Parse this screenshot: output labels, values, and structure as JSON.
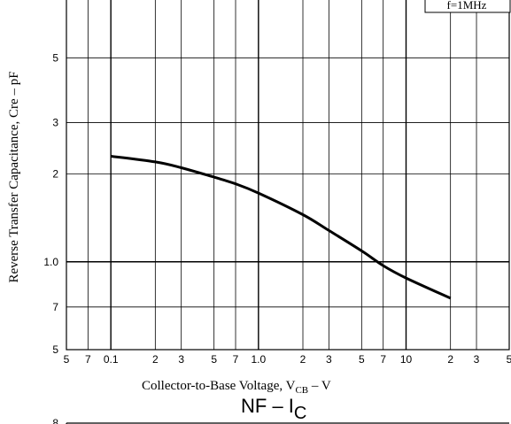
{
  "chart_data": {
    "type": "line",
    "title": "",
    "note": "f=1MHz",
    "xlabel": {
      "main": "Collector-to-Base Voltage, V",
      "sub": "CB",
      "unit": "  –  V"
    },
    "ylabel": "Reverse Transfer Capacitance, Cre  –  pF",
    "xscale": "log",
    "yscale": "log",
    "xlim": [
      0.05,
      50
    ],
    "ylim": [
      5,
      80
    ],
    "x_tick_labels": [
      {
        "v": 0.05,
        "t": "5"
      },
      {
        "v": 0.07,
        "t": "7"
      },
      {
        "v": 0.1,
        "t": "0.1"
      },
      {
        "v": 0.2,
        "t": "2"
      },
      {
        "v": 0.3,
        "t": "3"
      },
      {
        "v": 0.5,
        "t": "5"
      },
      {
        "v": 0.7,
        "t": "7"
      },
      {
        "v": 1,
        "t": "1.0"
      },
      {
        "v": 2,
        "t": "2"
      },
      {
        "v": 3,
        "t": "3"
      },
      {
        "v": 5,
        "t": "5"
      },
      {
        "v": 7,
        "t": "7"
      },
      {
        "v": 10,
        "t": "10"
      },
      {
        "v": 20,
        "t": "2"
      },
      {
        "v": 30,
        "t": "3"
      },
      {
        "v": 50,
        "t": "5"
      }
    ],
    "y_tick_labels": [
      {
        "v": 5,
        "t": "5"
      },
      {
        "v": 7,
        "t": "7"
      },
      {
        "v": 10,
        "t": "1.0"
      },
      {
        "v": 20,
        "t": "2"
      },
      {
        "v": 30,
        "t": "3"
      },
      {
        "v": 50,
        "t": "5"
      }
    ],
    "series": [
      {
        "x": [
          0.1,
          0.2,
          0.3,
          0.5,
          0.7,
          1.0,
          2.0,
          3.0,
          5.0,
          7.0,
          10.0,
          20.0
        ],
        "y": [
          23,
          22,
          21,
          19.5,
          18.5,
          17.2,
          14.5,
          12.8,
          10.9,
          9.7,
          8.8,
          7.5
        ]
      }
    ]
  },
  "next_chart": {
    "title_main": "NF  –  I",
    "title_sub": "C",
    "first_tick": "8"
  }
}
